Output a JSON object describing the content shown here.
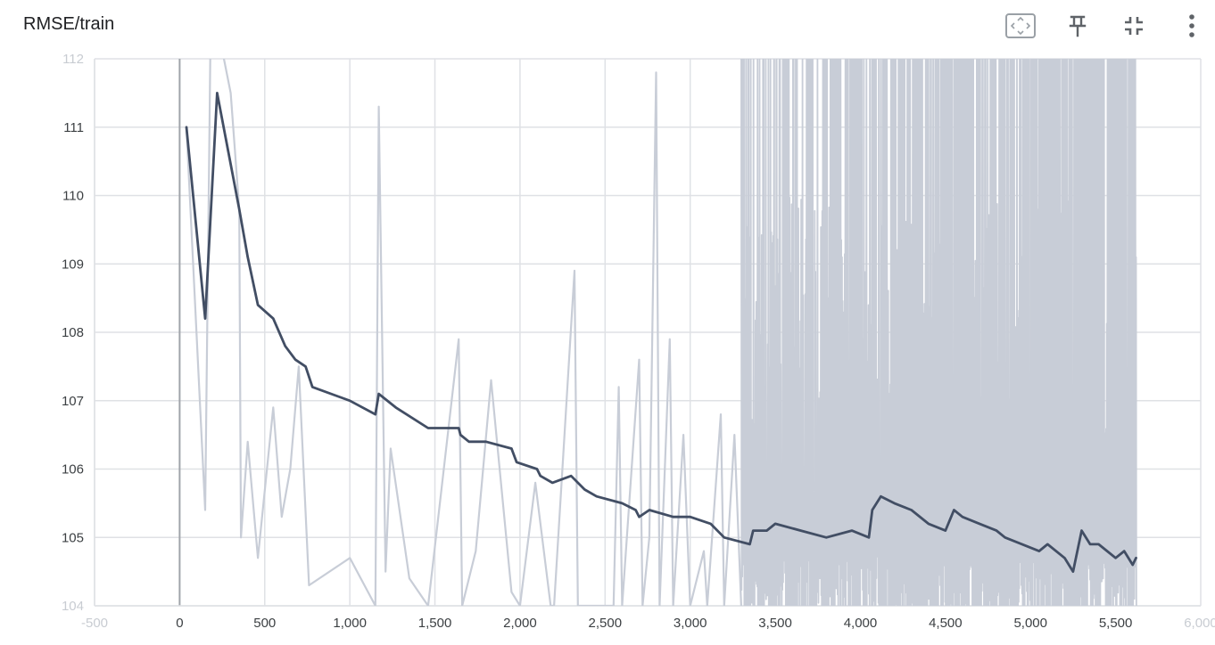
{
  "header": {
    "title": "RMSE/train",
    "icons": [
      "fit-domain-icon",
      "pin-icon",
      "collapse-icon",
      "more-vert-icon"
    ]
  },
  "colors": {
    "smoothed": "#424e64",
    "raw": "#c8cdd7",
    "grid": "#dfe1e5",
    "zero_axis": "#a0a4aa"
  },
  "chart_data": {
    "type": "line",
    "title": "RMSE/train",
    "xlabel": "",
    "ylabel": "",
    "xlim": [
      -500,
      6000
    ],
    "ylim": [
      104,
      112
    ],
    "grid": true,
    "y_ticks": [
      "112",
      "111",
      "110",
      "109",
      "108",
      "107",
      "106",
      "105",
      "104"
    ],
    "x_ticks": [
      "-500",
      "0",
      "500",
      "1,000",
      "1,500",
      "2,000",
      "2,500",
      "3,000",
      "3,500",
      "4,000",
      "4,500",
      "5,000",
      "5,500",
      "6,000"
    ],
    "series": [
      {
        "role": "smoothed",
        "points": [
          [
            40,
            111.0
          ],
          [
            150,
            108.2
          ],
          [
            220,
            111.5
          ],
          [
            350,
            109.8
          ],
          [
            400,
            109.1
          ],
          [
            460,
            108.4
          ],
          [
            550,
            108.2
          ],
          [
            620,
            107.8
          ],
          [
            680,
            107.6
          ],
          [
            740,
            107.5
          ],
          [
            780,
            107.2
          ],
          [
            1000,
            107.0
          ],
          [
            1150,
            106.8
          ],
          [
            1170,
            107.1
          ],
          [
            1270,
            106.9
          ],
          [
            1460,
            106.6
          ],
          [
            1640,
            106.6
          ],
          [
            1650,
            106.5
          ],
          [
            1700,
            106.4
          ],
          [
            1800,
            106.4
          ],
          [
            1950,
            106.3
          ],
          [
            1980,
            106.1
          ],
          [
            2100,
            106.0
          ],
          [
            2120,
            105.9
          ],
          [
            2190,
            105.8
          ],
          [
            2300,
            105.9
          ],
          [
            2380,
            105.7
          ],
          [
            2450,
            105.6
          ],
          [
            2600,
            105.5
          ],
          [
            2680,
            105.4
          ],
          [
            2700,
            105.3
          ],
          [
            2760,
            105.4
          ],
          [
            2900,
            105.3
          ],
          [
            3000,
            105.3
          ],
          [
            3120,
            105.2
          ],
          [
            3200,
            105.0
          ],
          [
            3350,
            104.9
          ],
          [
            3370,
            105.1
          ],
          [
            3450,
            105.1
          ],
          [
            3500,
            105.2
          ],
          [
            3650,
            105.1
          ],
          [
            3800,
            105.0
          ],
          [
            3950,
            105.1
          ],
          [
            4050,
            105.0
          ],
          [
            4070,
            105.4
          ],
          [
            4120,
            105.6
          ],
          [
            4200,
            105.5
          ],
          [
            4300,
            105.4
          ],
          [
            4400,
            105.2
          ],
          [
            4500,
            105.1
          ],
          [
            4550,
            105.4
          ],
          [
            4600,
            105.3
          ],
          [
            4700,
            105.2
          ],
          [
            4800,
            105.1
          ],
          [
            4850,
            105.0
          ],
          [
            4950,
            104.9
          ],
          [
            5050,
            104.8
          ],
          [
            5100,
            104.9
          ],
          [
            5200,
            104.7
          ],
          [
            5250,
            104.5
          ],
          [
            5300,
            105.1
          ],
          [
            5350,
            104.9
          ],
          [
            5400,
            104.9
          ],
          [
            5450,
            104.8
          ],
          [
            5500,
            104.7
          ],
          [
            5550,
            104.8
          ],
          [
            5600,
            104.6
          ],
          [
            5620,
            104.7
          ]
        ]
      },
      {
        "role": "raw",
        "points": [
          [
            40,
            111.0
          ],
          [
            150,
            105.4
          ],
          [
            180,
            112.0
          ],
          [
            200,
            113.0
          ],
          [
            260,
            112.0
          ],
          [
            300,
            111.5
          ],
          [
            350,
            109.8
          ],
          [
            360,
            105.0
          ],
          [
            400,
            106.4
          ],
          [
            460,
            104.7
          ],
          [
            550,
            106.9
          ],
          [
            600,
            105.3
          ],
          [
            650,
            106.0
          ],
          [
            700,
            107.5
          ],
          [
            760,
            104.3
          ],
          [
            1000,
            104.7
          ],
          [
            1150,
            104.0
          ],
          [
            1170,
            111.3
          ],
          [
            1210,
            104.5
          ],
          [
            1240,
            106.3
          ],
          [
            1350,
            104.4
          ],
          [
            1460,
            104.0
          ],
          [
            1640,
            107.9
          ],
          [
            1660,
            104.0
          ],
          [
            1740,
            104.8
          ],
          [
            1830,
            107.3
          ],
          [
            1950,
            104.2
          ],
          [
            2000,
            104.0
          ],
          [
            2090,
            105.8
          ],
          [
            2180,
            104.0
          ],
          [
            2200,
            104.0
          ],
          [
            2320,
            108.9
          ],
          [
            2340,
            104.0
          ],
          [
            2500,
            104.0
          ],
          [
            2550,
            104.0
          ],
          [
            2580,
            107.2
          ],
          [
            2600,
            104.0
          ],
          [
            2700,
            107.6
          ],
          [
            2720,
            104.0
          ],
          [
            2760,
            105.0
          ],
          [
            2800,
            111.8
          ],
          [
            2820,
            104.0
          ],
          [
            2880,
            107.9
          ],
          [
            2900,
            104.0
          ],
          [
            2960,
            106.5
          ],
          [
            3000,
            104.0
          ],
          [
            3080,
            104.8
          ],
          [
            3100,
            104.0
          ],
          [
            3180,
            106.8
          ],
          [
            3200,
            104.0
          ],
          [
            3260,
            106.5
          ],
          [
            3300,
            104.0
          ]
        ]
      }
    ],
    "noise_region": {
      "x_start": 3300,
      "x_end": 5620
    }
  }
}
